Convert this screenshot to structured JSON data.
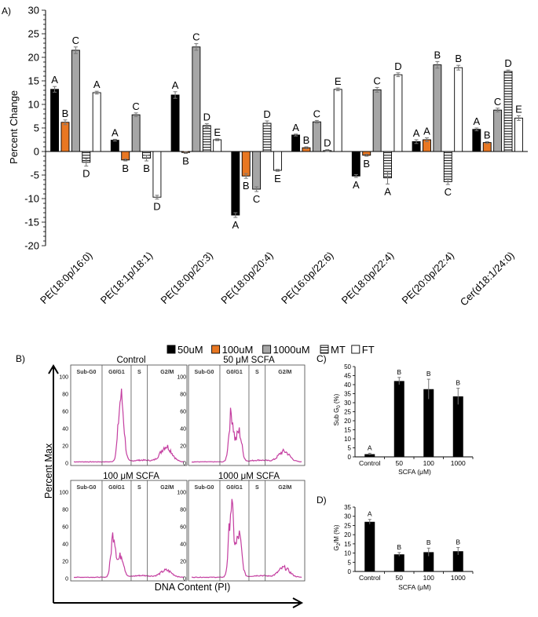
{
  "panel_labels": {
    "a": "A)",
    "b": "B)",
    "c": "C)",
    "d": "D)"
  },
  "chart_data": [
    {
      "id": "A",
      "type": "bar",
      "ylabel": "Percent Change",
      "ylim": [
        -20,
        30
      ],
      "yticks": [
        -20,
        -15,
        -10,
        -5,
        0,
        5,
        10,
        15,
        20,
        25,
        30
      ],
      "categories": [
        "PE(18:0p/16:0)",
        "PE(18:1p/18:1)",
        "PE(18:0p/20:3)",
        "PE(18:0p/20:4)",
        "PE(16:0p/22:6)",
        "PE(18:0p/22:4)",
        "PE(20:0p/22:4)",
        "Cer(d18:1/24:0)"
      ],
      "legend_position": "bottom",
      "series": [
        {
          "name": "50uM",
          "color": "#000000",
          "pattern": "solid",
          "values": [
            13.2,
            2.4,
            12.0,
            -13.5,
            3.5,
            -5.2,
            2.1,
            4.7
          ],
          "errors": [
            0.6,
            0.2,
            0.7,
            0.5,
            0.2,
            0.3,
            0.4,
            0.3
          ],
          "letters": [
            "A",
            "A",
            "A",
            "A",
            "A",
            "A",
            "A",
            "A"
          ]
        },
        {
          "name": "100uM",
          "color": "#e87722",
          "pattern": "solid",
          "values": [
            6.2,
            -1.8,
            -0.2,
            -5.2,
            0.8,
            -0.8,
            2.5,
            1.9
          ],
          "errors": [
            0.5,
            0.2,
            0.2,
            0.5,
            0.2,
            0.2,
            0.4,
            0.2
          ],
          "letters": [
            "B",
            "B",
            "B",
            "B",
            "B",
            "B",
            "A",
            "B"
          ]
        },
        {
          "name": "1000uM",
          "color": "#a6a6a6",
          "pattern": "solid",
          "values": [
            21.5,
            7.8,
            22.2,
            -8.0,
            6.3,
            13.1,
            18.4,
            8.8
          ],
          "errors": [
            0.7,
            0.4,
            0.7,
            0.5,
            0.3,
            0.5,
            0.7,
            0.4
          ],
          "letters": [
            "C",
            "C",
            "C",
            "C",
            "C",
            "C",
            "B",
            "C"
          ]
        },
        {
          "name": "MT",
          "color": "#ffffff",
          "pattern": "hlines",
          "values": [
            -2.3,
            -1.4,
            5.5,
            6.0,
            0.2,
            -5.6,
            -6.4,
            17.0
          ],
          "errors": [
            0.8,
            0.6,
            0.4,
            0.5,
            0.2,
            1.3,
            0.6,
            0.3
          ],
          "letters": [
            "D",
            "B",
            "D",
            "D",
            "D",
            "A",
            "C",
            "D"
          ]
        },
        {
          "name": "FT",
          "color": "#ffffff",
          "pattern": "solid",
          "values": [
            12.5,
            -9.7,
            2.5,
            -4.0,
            13.2,
            16.3,
            17.8,
            7.1
          ],
          "errors": [
            0.3,
            0.4,
            0.2,
            0.2,
            0.3,
            0.4,
            0.5,
            0.5
          ],
          "letters": [
            "A",
            "D",
            "E",
            "E",
            "E",
            "D",
            "B",
            "E"
          ]
        }
      ]
    },
    {
      "id": "B",
      "type": "histogram-panels",
      "ylabel": "Percent Max",
      "xlabel": "DNA Content (PI)",
      "yticks": [
        0,
        20,
        40,
        60,
        80,
        100
      ],
      "gate_labels": [
        "Sub-G0",
        "G0/G1",
        "S",
        "G2/M"
      ],
      "panels": [
        {
          "title": "Control"
        },
        {
          "title": "50 μM SCFA"
        },
        {
          "title": "100 μM SCFA"
        },
        {
          "title": "1000 μM SCFA"
        }
      ]
    },
    {
      "id": "C",
      "type": "bar",
      "ylabel": "Sub G0 (%)",
      "ylabel_main": "Sub G",
      "ylabel_sub": "0",
      "ylabel_tail": " (%)",
      "xlabel": "SCFA (μM)",
      "ylim": [
        0,
        50
      ],
      "yticks": [
        0,
        5,
        10,
        15,
        20,
        25,
        30,
        35,
        40,
        45,
        50
      ],
      "categories": [
        "Control",
        "50",
        "100",
        "1000"
      ],
      "values": [
        1.5,
        42.0,
        37.5,
        33.5
      ],
      "errors": [
        0.5,
        2.0,
        5.5,
        4.5
      ],
      "letters": [
        "A",
        "B",
        "B",
        "B"
      ]
    },
    {
      "id": "D",
      "type": "bar",
      "ylabel": "G2/M (%)",
      "ylabel_main": "G",
      "ylabel_sub": "2",
      "ylabel_tail": "/M (%)",
      "xlabel": "SCFA (μM)",
      "ylim": [
        0,
        35
      ],
      "yticks": [
        0,
        5,
        10,
        15,
        20,
        25,
        30,
        35
      ],
      "categories": [
        "Control",
        "50",
        "100",
        "1000"
      ],
      "values": [
        27.0,
        9.3,
        10.5,
        11.0
      ],
      "errors": [
        1.3,
        1.0,
        2.2,
        2.0
      ],
      "letters": [
        "A",
        "B",
        "B",
        "B"
      ]
    }
  ]
}
